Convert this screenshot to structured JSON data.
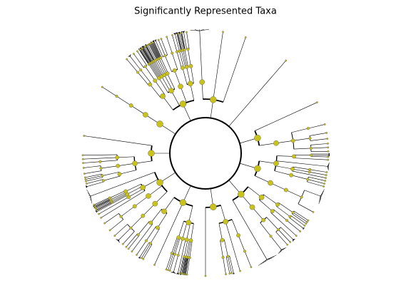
{
  "title": "Significantly Represented Taxa"
}
